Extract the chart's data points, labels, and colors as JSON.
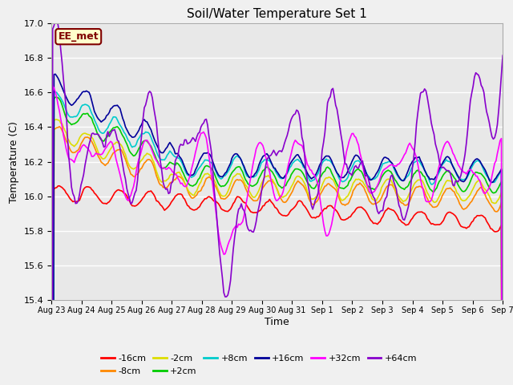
{
  "title": "Soil/Water Temperature Set 1",
  "xlabel": "Time",
  "ylabel": "Temperature (C)",
  "ylim": [
    15.4,
    17.0
  ],
  "yticks": [
    15.4,
    15.6,
    15.8,
    16.0,
    16.2,
    16.4,
    16.6,
    16.8,
    17.0
  ],
  "fig_facecolor": "#f0f0f0",
  "ax_facecolor": "#e8e8e8",
  "label_box_text": "EE_met",
  "label_box_facecolor": "#ffffcc",
  "label_box_edgecolor": "#800000",
  "series": [
    {
      "label": "-16cm",
      "color": "#ff0000"
    },
    {
      "label": "-8cm",
      "color": "#ff8800"
    },
    {
      "label": "-2cm",
      "color": "#dddd00"
    },
    {
      "label": "+2cm",
      "color": "#00cc00"
    },
    {
      "label": "+8cm",
      "color": "#00cccc"
    },
    {
      "label": "+16cm",
      "color": "#000099"
    },
    {
      "label": "+32cm",
      "color": "#ff00ff"
    },
    {
      "label": "+64cm",
      "color": "#8800cc"
    }
  ],
  "x_tick_labels": [
    "Aug 23",
    "Aug 24",
    "Aug 25",
    "Aug 26",
    "Aug 27",
    "Aug 28",
    "Aug 29",
    "Aug 30",
    "Aug 31",
    "Sep 1",
    "Sep 2",
    "Sep 3",
    "Sep 4",
    "Sep 5",
    "Sep 6",
    "Sep 7"
  ],
  "n_points": 336,
  "linewidth": 1.2
}
